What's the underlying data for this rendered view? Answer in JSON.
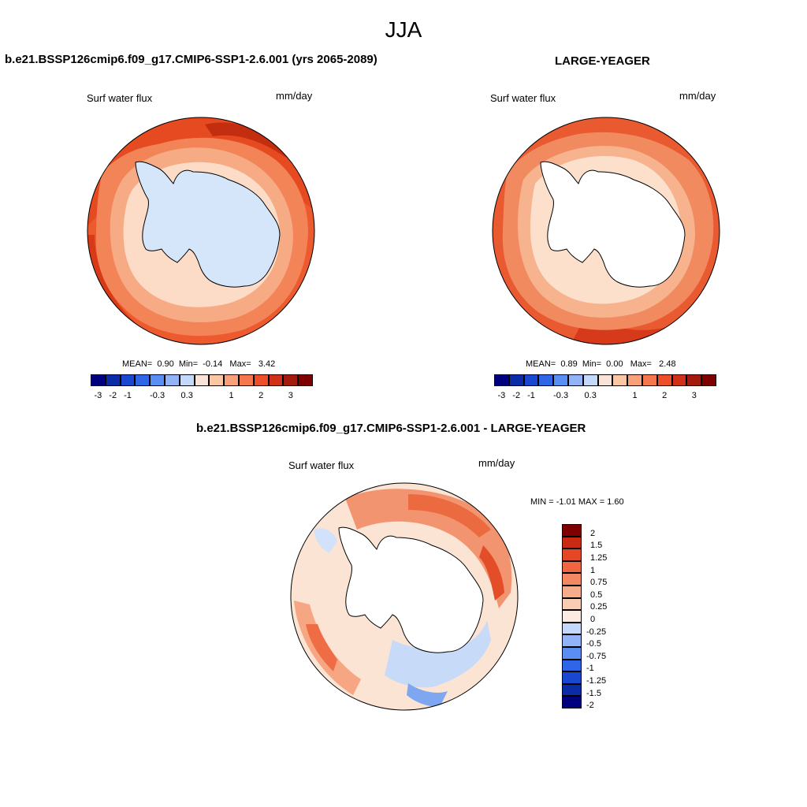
{
  "title": "JJA",
  "panel1": {
    "title": "b.e21.BSSP126cmip6.f09_g17.CMIP6-SSP1-2.6.001 (yrs 2065-2089)",
    "variable": "Surf water flux",
    "units": "mm/day",
    "stats": {
      "mean_label": "MEAN=",
      "mean": "0.90",
      "min_label": "Min=",
      "min": "-0.14",
      "max_label": "Max=",
      "max": "3.42"
    }
  },
  "panel2": {
    "title": "LARGE-YEAGER",
    "variable": "Surf water flux",
    "units": "mm/day",
    "stats": {
      "mean_label": "MEAN=",
      "mean": "0.89",
      "min_label": "Min=",
      "min": "0.00",
      "max_label": "Max=",
      "max": "2.48"
    }
  },
  "panel3": {
    "title": "b.e21.BSSP126cmip6.f09_g17.CMIP6-SSP1-2.6.001 - LARGE-YEAGER",
    "variable": "Surf water flux",
    "units": "mm/day",
    "stats": "MIN =  -1.01 MAX =   1.60"
  },
  "colorbar_main": {
    "colors": [
      "#00007f",
      "#0a2ca6",
      "#1a47d0",
      "#2f66e8",
      "#5b8ef2",
      "#92b4f7",
      "#c3d8fa",
      "#f8e3d6",
      "#fbc6a4",
      "#f9a07a",
      "#f4774e",
      "#ec4f2a",
      "#d0301a",
      "#a51a0e",
      "#7f0000"
    ],
    "tick_labels": [
      "-3",
      "-2",
      "-1",
      "-0.3",
      "0.3",
      "1",
      "2",
      "3"
    ]
  },
  "colorbar_diff": {
    "colors": [
      "#00007f",
      "#0a2ca6",
      "#1a47d0",
      "#2f66e8",
      "#5b8ef2",
      "#92b4f7",
      "#c3d8fa",
      "#fbebe0",
      "#f9cdb4",
      "#f6ac8a",
      "#f48862",
      "#ef6640",
      "#e34726",
      "#c82a14",
      "#7f0000"
    ],
    "tick_labels": [
      "-2",
      "-1.5",
      "-1.25",
      "-1",
      "-0.75",
      "-0.5",
      "-0.25",
      "0",
      "0.25",
      "0.5",
      "0.75",
      "1",
      "1.25",
      "1.5",
      "2"
    ]
  }
}
